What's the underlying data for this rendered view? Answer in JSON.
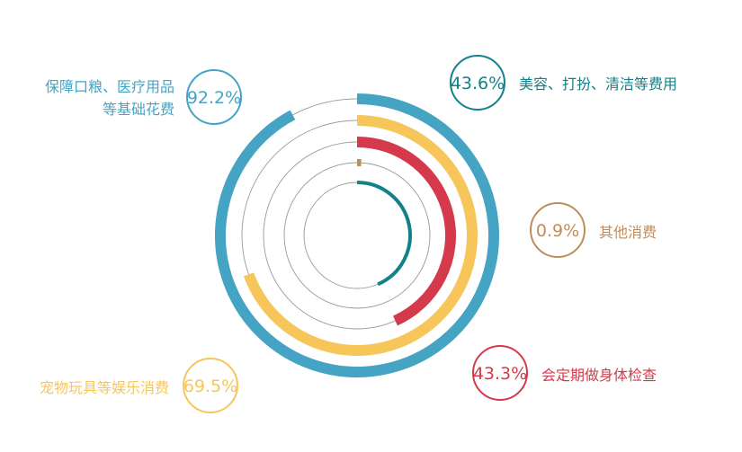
{
  "chart_data": {
    "type": "radial-bar",
    "unit": "%",
    "categories": [
      "保障口粮、医疗用品等基础花费",
      "宠物玩具等娱乐消费",
      "会定期做身体检查",
      "其他消费",
      "美容、打扮、清洁等费用"
    ],
    "values": [
      92.2,
      69.5,
      43.3,
      0.9,
      43.6
    ],
    "series": [
      {
        "label": "92.2%",
        "category_lines": [
          "保障口粮、医疗用品",
          "等基础花费"
        ],
        "value": 92.2,
        "color": "#45a3c4"
      },
      {
        "label": "69.5%",
        "category_lines": [
          "宠物玩具等娱乐消费"
        ],
        "value": 69.5,
        "color": "#f7c65a"
      },
      {
        "label": "43.3%",
        "category_lines": [
          "会定期做身体检查"
        ],
        "value": 43.3,
        "color": "#d43a4b"
      },
      {
        "label": "0.9%",
        "category_lines": [
          "其他消费"
        ],
        "value": 0.9,
        "color": "#c18c5b"
      },
      {
        "label": "43.6%",
        "category_lines": [
          "美容、打扮、清洁等费用"
        ],
        "value": 43.6,
        "color": "#138189"
      }
    ],
    "arc_order_outer_to_inner": [
      0,
      1,
      2,
      3,
      4
    ],
    "start_angle": "top, clockwise"
  }
}
